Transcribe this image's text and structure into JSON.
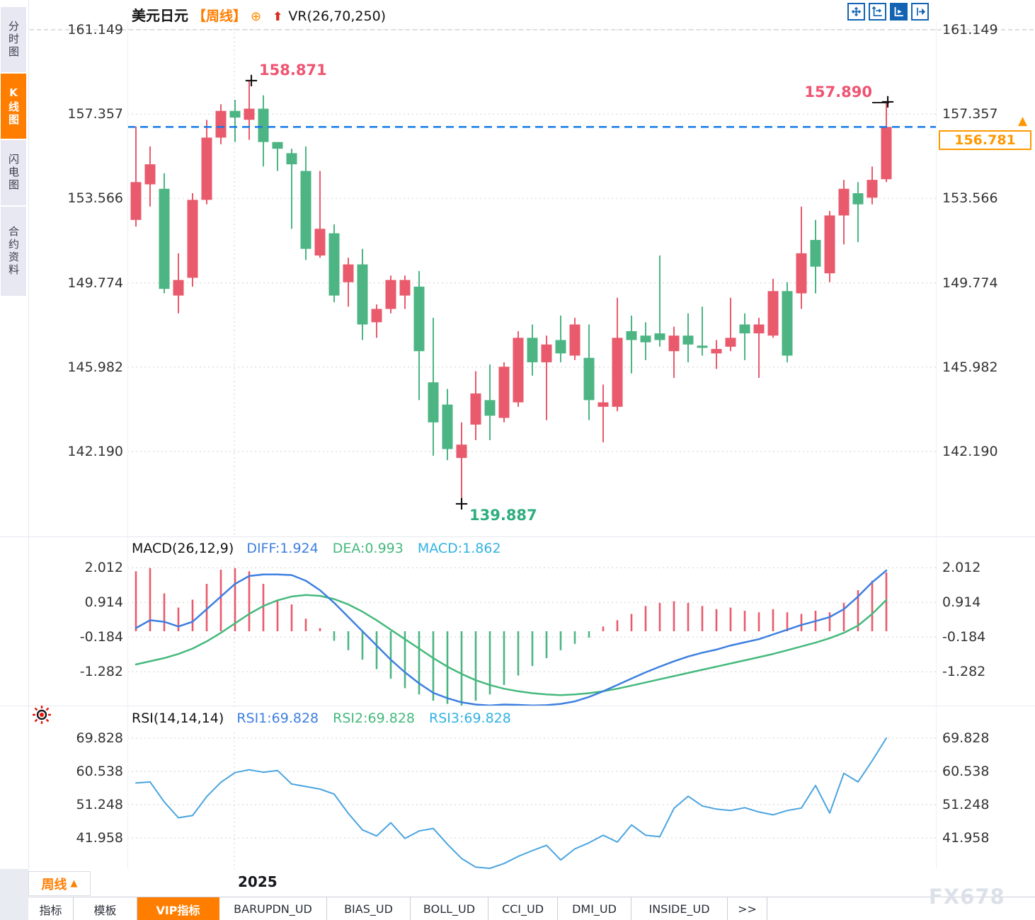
{
  "sidebar": {
    "tabs": [
      {
        "label": "分时图",
        "active": false
      },
      {
        "label": "K线图",
        "active": true
      },
      {
        "label": "闪电图",
        "active": false
      },
      {
        "label": "合约资料",
        "active": false
      }
    ]
  },
  "header": {
    "symbol": "美元日元",
    "period_tag": "【周线】",
    "circle_plus_icon": "⊕",
    "up_arrow_icon": "⬆",
    "indicator_label": "VR(26,70,250)"
  },
  "toolbar": {
    "icons": [
      "crosshair-move",
      "axis-scale",
      "auto-scroll",
      "shift-right"
    ]
  },
  "annotations": {
    "high_label": "158.871",
    "recent_high_label": "157.890",
    "low_label": "139.887",
    "marker": "+"
  },
  "price_box": {
    "value": "156.781",
    "arrow": "▲"
  },
  "xaxis": {
    "period": "周线",
    "arrow": "▲",
    "year": "2025"
  },
  "bottom_tabs": {
    "items": [
      "指标",
      "模板",
      "VIP指标",
      "BARUPDN_UD",
      "BIAS_UD",
      "BOLL_UD",
      "CCI_UD",
      "DMI_UD",
      "INSIDE_UD",
      ">>"
    ],
    "active": "VIP指标"
  },
  "watermark": "FX678",
  "colors": {
    "up": "#e85a6c",
    "down": "#4cb583",
    "accent_orange": "#ff7e00",
    "dashed_line": "#1479e8",
    "diff_blue": "#3d7fe0",
    "dea_green": "#45b97c",
    "macd_cyan": "#32b2e2",
    "rsi_blue": "#4aa4e0",
    "annotation_red": "#ef5471",
    "annotation_green": "#2fae7e",
    "price_box_orange": "#ff9800",
    "toolbar_blue": "#1264b3",
    "grid": "#e0e0e0"
  },
  "chart_data": [
    {
      "type": "candlestick",
      "title": "美元日元 周线 (USD/JPY weekly)",
      "legend_position": "top-left",
      "grid": "dotted",
      "y_tick_labels": [
        "161.149",
        "157.357",
        "153.566",
        "149.774",
        "145.982",
        "142.190"
      ],
      "y_ticks": [
        161.149,
        157.357,
        153.566,
        149.774,
        145.982,
        142.19
      ],
      "ylim": [
        139.0,
        161.9
      ],
      "x_year_label": "2025",
      "last_price": 156.781,
      "high_annotation": 158.871,
      "recent_high_annotation": 157.89,
      "low_annotation": 139.887,
      "candle_format": "[open, close, high, low]",
      "candles": [
        [
          152.6,
          154.3,
          156.8,
          152.3
        ],
        [
          154.2,
          155.1,
          155.9,
          153.2
        ],
        [
          154.0,
          149.5,
          154.7,
          149.3
        ],
        [
          149.2,
          149.9,
          151.1,
          148.4
        ],
        [
          150.0,
          153.5,
          153.8,
          149.6
        ],
        [
          153.5,
          156.3,
          157.1,
          153.3
        ],
        [
          156.3,
          157.5,
          157.8,
          156.0
        ],
        [
          157.5,
          157.2,
          158.0,
          156.1
        ],
        [
          157.1,
          157.6,
          158.871,
          156.2
        ],
        [
          157.6,
          156.1,
          158.2,
          155.0
        ],
        [
          156.1,
          155.8,
          156.0,
          154.8
        ],
        [
          155.6,
          155.1,
          155.8,
          152.2
        ],
        [
          154.8,
          151.3,
          155.9,
          150.8
        ],
        [
          151.0,
          152.2,
          154.8,
          150.9
        ],
        [
          152.0,
          149.2,
          152.4,
          148.9
        ],
        [
          149.8,
          150.6,
          150.9,
          148.7
        ],
        [
          150.6,
          147.9,
          151.3,
          147.2
        ],
        [
          148.0,
          148.6,
          148.8,
          147.3
        ],
        [
          148.6,
          149.9,
          150.1,
          148.4
        ],
        [
          149.2,
          149.9,
          150.1,
          148.6
        ],
        [
          149.6,
          146.7,
          150.3,
          144.5
        ],
        [
          145.3,
          143.5,
          148.2,
          142.0
        ],
        [
          144.3,
          142.3,
          145.0,
          141.8
        ],
        [
          141.9,
          142.5,
          143.5,
          139.887
        ],
        [
          143.4,
          144.8,
          145.8,
          142.7
        ],
        [
          144.5,
          143.8,
          146.1,
          142.7
        ],
        [
          143.7,
          146.0,
          146.2,
          143.5
        ],
        [
          144.4,
          147.3,
          147.6,
          144.2
        ],
        [
          147.3,
          146.2,
          147.9,
          145.6
        ],
        [
          146.2,
          147.0,
          147.4,
          143.6
        ],
        [
          147.2,
          146.6,
          148.3,
          146.2
        ],
        [
          146.5,
          147.9,
          148.2,
          146.3
        ],
        [
          146.4,
          144.5,
          147.9,
          143.6
        ],
        [
          144.2,
          144.4,
          145.2,
          142.6
        ],
        [
          144.2,
          147.3,
          149.1,
          144.0
        ],
        [
          147.6,
          147.2,
          148.3,
          145.7
        ],
        [
          147.4,
          147.1,
          148.0,
          146.3
        ],
        [
          147.5,
          147.2,
          151.0,
          146.9
        ],
        [
          146.7,
          147.4,
          147.8,
          145.5
        ],
        [
          147.4,
          147.0,
          148.4,
          146.2
        ],
        [
          146.95,
          146.85,
          148.7,
          146.5
        ],
        [
          146.6,
          146.8,
          147.2,
          145.9
        ],
        [
          146.9,
          147.3,
          149.1,
          146.7
        ],
        [
          147.9,
          147.5,
          148.4,
          146.3
        ],
        [
          147.5,
          147.9,
          148.2,
          145.5
        ],
        [
          147.4,
          149.4,
          149.95,
          147.3
        ],
        [
          149.4,
          146.5,
          149.8,
          146.2
        ],
        [
          149.3,
          151.1,
          153.2,
          148.6
        ],
        [
          151.7,
          150.5,
          152.6,
          149.3
        ],
        [
          150.2,
          152.8,
          153.0,
          149.8
        ],
        [
          152.8,
          154.0,
          154.4,
          151.5
        ],
        [
          153.8,
          153.3,
          154.3,
          151.6
        ],
        [
          153.6,
          154.4,
          155.0,
          153.3
        ],
        [
          154.43,
          156.781,
          157.89,
          154.3
        ]
      ]
    },
    {
      "type": "bar",
      "title": "MACD(26,12,9)",
      "legend": [
        "DIFF:1.924",
        "DEA:0.993",
        "MACD:1.862"
      ],
      "y_tick_labels": [
        "2.012",
        "0.914",
        "-0.184",
        "-1.282"
      ],
      "y_ticks": [
        2.012,
        0.914,
        -0.184,
        -1.282
      ],
      "series_note": "hist bars red above 0 / green below 0; DIFF blue line; DEA green line",
      "hist": [
        1.9,
        2.0,
        1.2,
        0.75,
        1.0,
        1.5,
        1.95,
        2.0,
        1.9,
        1.5,
        1.0,
        0.85,
        0.4,
        0.1,
        -0.3,
        -0.6,
        -0.9,
        -1.2,
        -1.5,
        -1.8,
        -2.0,
        -2.2,
        -2.3,
        -2.35,
        -2.2,
        -2.0,
        -1.7,
        -1.4,
        -1.1,
        -0.85,
        -0.6,
        -0.4,
        -0.2,
        0.15,
        0.35,
        0.55,
        0.8,
        0.9,
        0.95,
        0.9,
        0.8,
        0.7,
        0.75,
        0.65,
        0.6,
        0.7,
        0.6,
        0.55,
        0.65,
        0.6,
        0.9,
        1.3,
        1.6,
        1.862
      ],
      "diff": [
        0.1,
        0.35,
        0.3,
        0.15,
        0.3,
        0.7,
        1.1,
        1.5,
        1.75,
        1.8,
        1.8,
        1.78,
        1.6,
        1.3,
        0.9,
        0.45,
        0.0,
        -0.45,
        -0.9,
        -1.3,
        -1.65,
        -1.95,
        -2.12,
        -2.25,
        -2.32,
        -2.35,
        -2.32,
        -2.33,
        -2.35,
        -2.34,
        -2.3,
        -2.22,
        -2.08,
        -1.9,
        -1.7,
        -1.5,
        -1.3,
        -1.12,
        -0.95,
        -0.8,
        -0.68,
        -0.58,
        -0.45,
        -0.35,
        -0.25,
        -0.1,
        0.05,
        0.2,
        0.32,
        0.45,
        0.7,
        1.1,
        1.55,
        1.924
      ],
      "dea": [
        -1.05,
        -0.95,
        -0.85,
        -0.72,
        -0.55,
        -0.32,
        -0.05,
        0.25,
        0.55,
        0.8,
        0.98,
        1.1,
        1.15,
        1.12,
        1.02,
        0.85,
        0.62,
        0.35,
        0.05,
        -0.25,
        -0.55,
        -0.85,
        -1.12,
        -1.35,
        -1.55,
        -1.7,
        -1.82,
        -1.9,
        -1.96,
        -2.0,
        -2.02,
        -2.0,
        -1.96,
        -1.9,
        -1.82,
        -1.72,
        -1.62,
        -1.52,
        -1.42,
        -1.32,
        -1.22,
        -1.12,
        -1.02,
        -0.92,
        -0.82,
        -0.72,
        -0.6,
        -0.48,
        -0.36,
        -0.22,
        -0.05,
        0.18,
        0.55,
        0.993
      ]
    },
    {
      "type": "line",
      "title": "RSI(14,14,14)",
      "legend": [
        "RSI1:69.828",
        "RSI2:69.828",
        "RSI3:69.828"
      ],
      "y_tick_labels": [
        "69.828",
        "60.538",
        "51.248",
        "41.958"
      ],
      "y_ticks": [
        69.828,
        60.538,
        51.248,
        41.958
      ],
      "values": [
        57.3,
        57.6,
        52.0,
        47.6,
        48.2,
        53.5,
        57.5,
        60.2,
        61.0,
        60.3,
        60.8,
        57.0,
        56.3,
        55.6,
        54.2,
        48.8,
        44.2,
        42.5,
        46.2,
        41.8,
        43.9,
        44.6,
        40.2,
        36.2,
        33.8,
        33.4,
        34.8,
        36.8,
        38.4,
        39.9,
        35.8,
        38.9,
        40.6,
        42.7,
        40.8,
        45.6,
        42.7,
        42.3,
        50.2,
        53.6,
        50.9,
        50.0,
        49.6,
        50.4,
        49.2,
        48.4,
        49.6,
        50.3,
        56.6,
        48.9,
        60.0,
        57.6,
        63.5,
        69.828
      ]
    }
  ]
}
